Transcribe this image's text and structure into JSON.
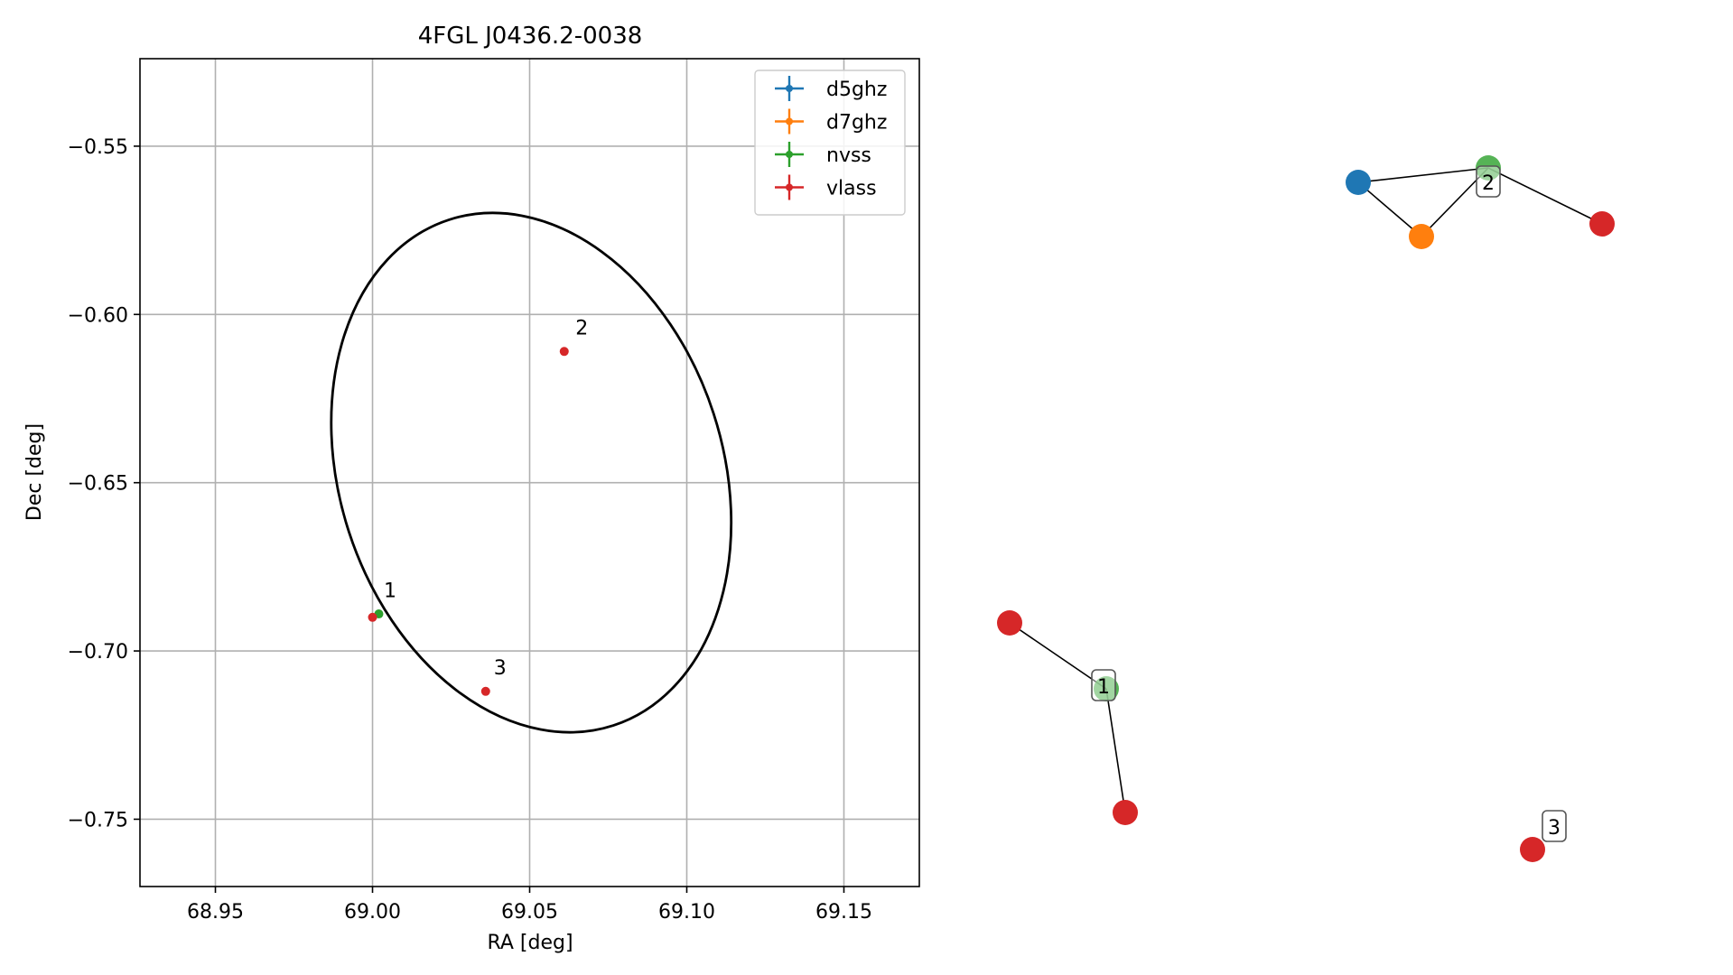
{
  "chart_data": [
    {
      "type": "scatter",
      "title": "4FGL J0436.2-0038",
      "xlabel": "RA [deg]",
      "ylabel": "Dec [deg]",
      "xlim": [
        68.926,
        69.174
      ],
      "ylim": [
        -0.77,
        -0.524
      ],
      "xticks": [
        68.95,
        69.0,
        69.05,
        69.1,
        69.15
      ],
      "xtick_labels": [
        "68.95",
        "69.00",
        "69.05",
        "69.10",
        "69.15"
      ],
      "yticks": [
        -0.55,
        -0.6,
        -0.65,
        -0.7,
        -0.75
      ],
      "ytick_labels": [
        "−0.55",
        "−0.60",
        "−0.65",
        "−0.70",
        "−0.75"
      ],
      "grid": true,
      "legend_position": "top-right",
      "series": [
        {
          "name": "d5ghz",
          "color": "#1f77b4",
          "points": []
        },
        {
          "name": "d7ghz",
          "color": "#ff7f0e",
          "points": []
        },
        {
          "name": "nvss",
          "color": "#2ca02c",
          "points": [
            {
              "x": 69.002,
              "y": -0.689
            }
          ]
        },
        {
          "name": "vlass",
          "color": "#d62728",
          "points": [
            {
              "x": 69.0,
              "y": -0.69
            },
            {
              "x": 69.061,
              "y": -0.611
            },
            {
              "x": 69.036,
              "y": -0.712
            }
          ]
        }
      ],
      "annotations": [
        {
          "text": "1",
          "x": 69.003,
          "y": -0.684
        },
        {
          "text": "2",
          "x": 69.064,
          "y": -0.606
        },
        {
          "text": "3",
          "x": 69.038,
          "y": -0.707
        }
      ],
      "ellipse": {
        "center": [
          69.0505,
          -0.647
        ],
        "semi_axis_ra": 0.061,
        "semi_axis_dec": 0.079,
        "tilt_deg": -18,
        "color": "#000000"
      }
    },
    {
      "type": "network",
      "nodes": [
        {
          "id": "blue",
          "color": "#1f77b4"
        },
        {
          "id": "orange",
          "color": "#ff7f0e"
        },
        {
          "id": "green2",
          "color": "#2ca02c",
          "label": "2"
        },
        {
          "id": "red2",
          "color": "#d62728"
        },
        {
          "id": "red1a",
          "color": "#d62728"
        },
        {
          "id": "green1",
          "color": "#2ca02c",
          "label": "1"
        },
        {
          "id": "red1b",
          "color": "#d62728"
        },
        {
          "id": "red3",
          "color": "#d62728",
          "label": "3"
        }
      ],
      "edges": [
        [
          "blue",
          "green2"
        ],
        [
          "blue",
          "orange"
        ],
        [
          "orange",
          "green2"
        ],
        [
          "green2",
          "red2"
        ],
        [
          "red1a",
          "green1"
        ],
        [
          "green1",
          "red1b"
        ]
      ]
    }
  ]
}
